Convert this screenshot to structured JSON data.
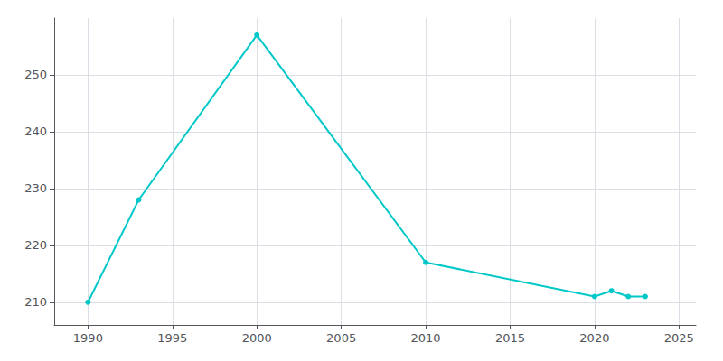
{
  "chart_data": {
    "type": "line",
    "x": [
      1990,
      1993,
      2000,
      2010,
      2020,
      2021,
      2022,
      2023
    ],
    "values": [
      210,
      228,
      257,
      217,
      211,
      212,
      211,
      211
    ],
    "color": "#00c8c8",
    "marker": "circle",
    "xlim": [
      1988,
      2026
    ],
    "ylim": [
      206,
      260
    ],
    "xticks": [
      1990,
      1995,
      2000,
      2005,
      2010,
      2015,
      2020,
      2025
    ],
    "yticks": [
      210,
      220,
      230,
      240,
      250
    ],
    "grid": true
  }
}
